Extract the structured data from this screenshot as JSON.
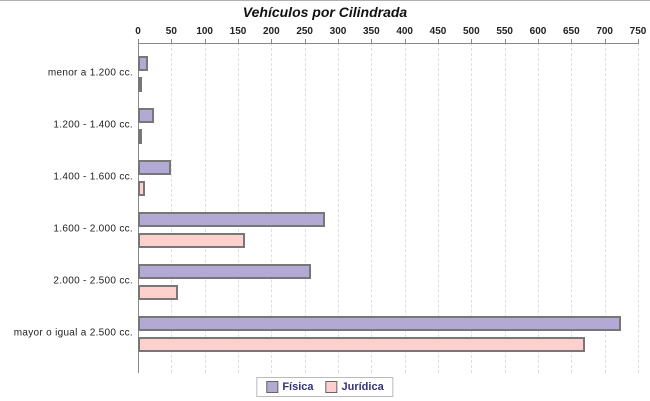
{
  "chart_data": {
    "type": "bar",
    "orientation": "horizontal",
    "title": "Vehículos por Cilindrada",
    "categories": [
      "menor a 1.200 cc.",
      "1.200 - 1.400 cc.",
      "1.400 - 1.600 cc.",
      "1.600 - 2.000 cc.",
      "2.000 - 2.500 cc.",
      "mayor o igual a 2.500 cc."
    ],
    "series": [
      {
        "name": "Física",
        "color": "#b2aad4",
        "values": [
          15,
          24,
          50,
          280,
          260,
          725
        ]
      },
      {
        "name": "Jurídica",
        "color": "#fdd0cd",
        "values": [
          1,
          3,
          10,
          160,
          60,
          670
        ]
      }
    ],
    "xlim": [
      0,
      750
    ],
    "x_ticks": [
      0,
      50,
      100,
      150,
      200,
      250,
      300,
      350,
      400,
      450,
      500,
      550,
      600,
      650,
      700,
      750
    ],
    "grid": "vertical-dashed",
    "legend_position": "bottom",
    "colors": {
      "bar_border": "#777777",
      "axis": "#888888",
      "gridline": "#dedede",
      "title_text": "#111111",
      "legend_text": "#333377",
      "tick_text": "#222222"
    }
  }
}
